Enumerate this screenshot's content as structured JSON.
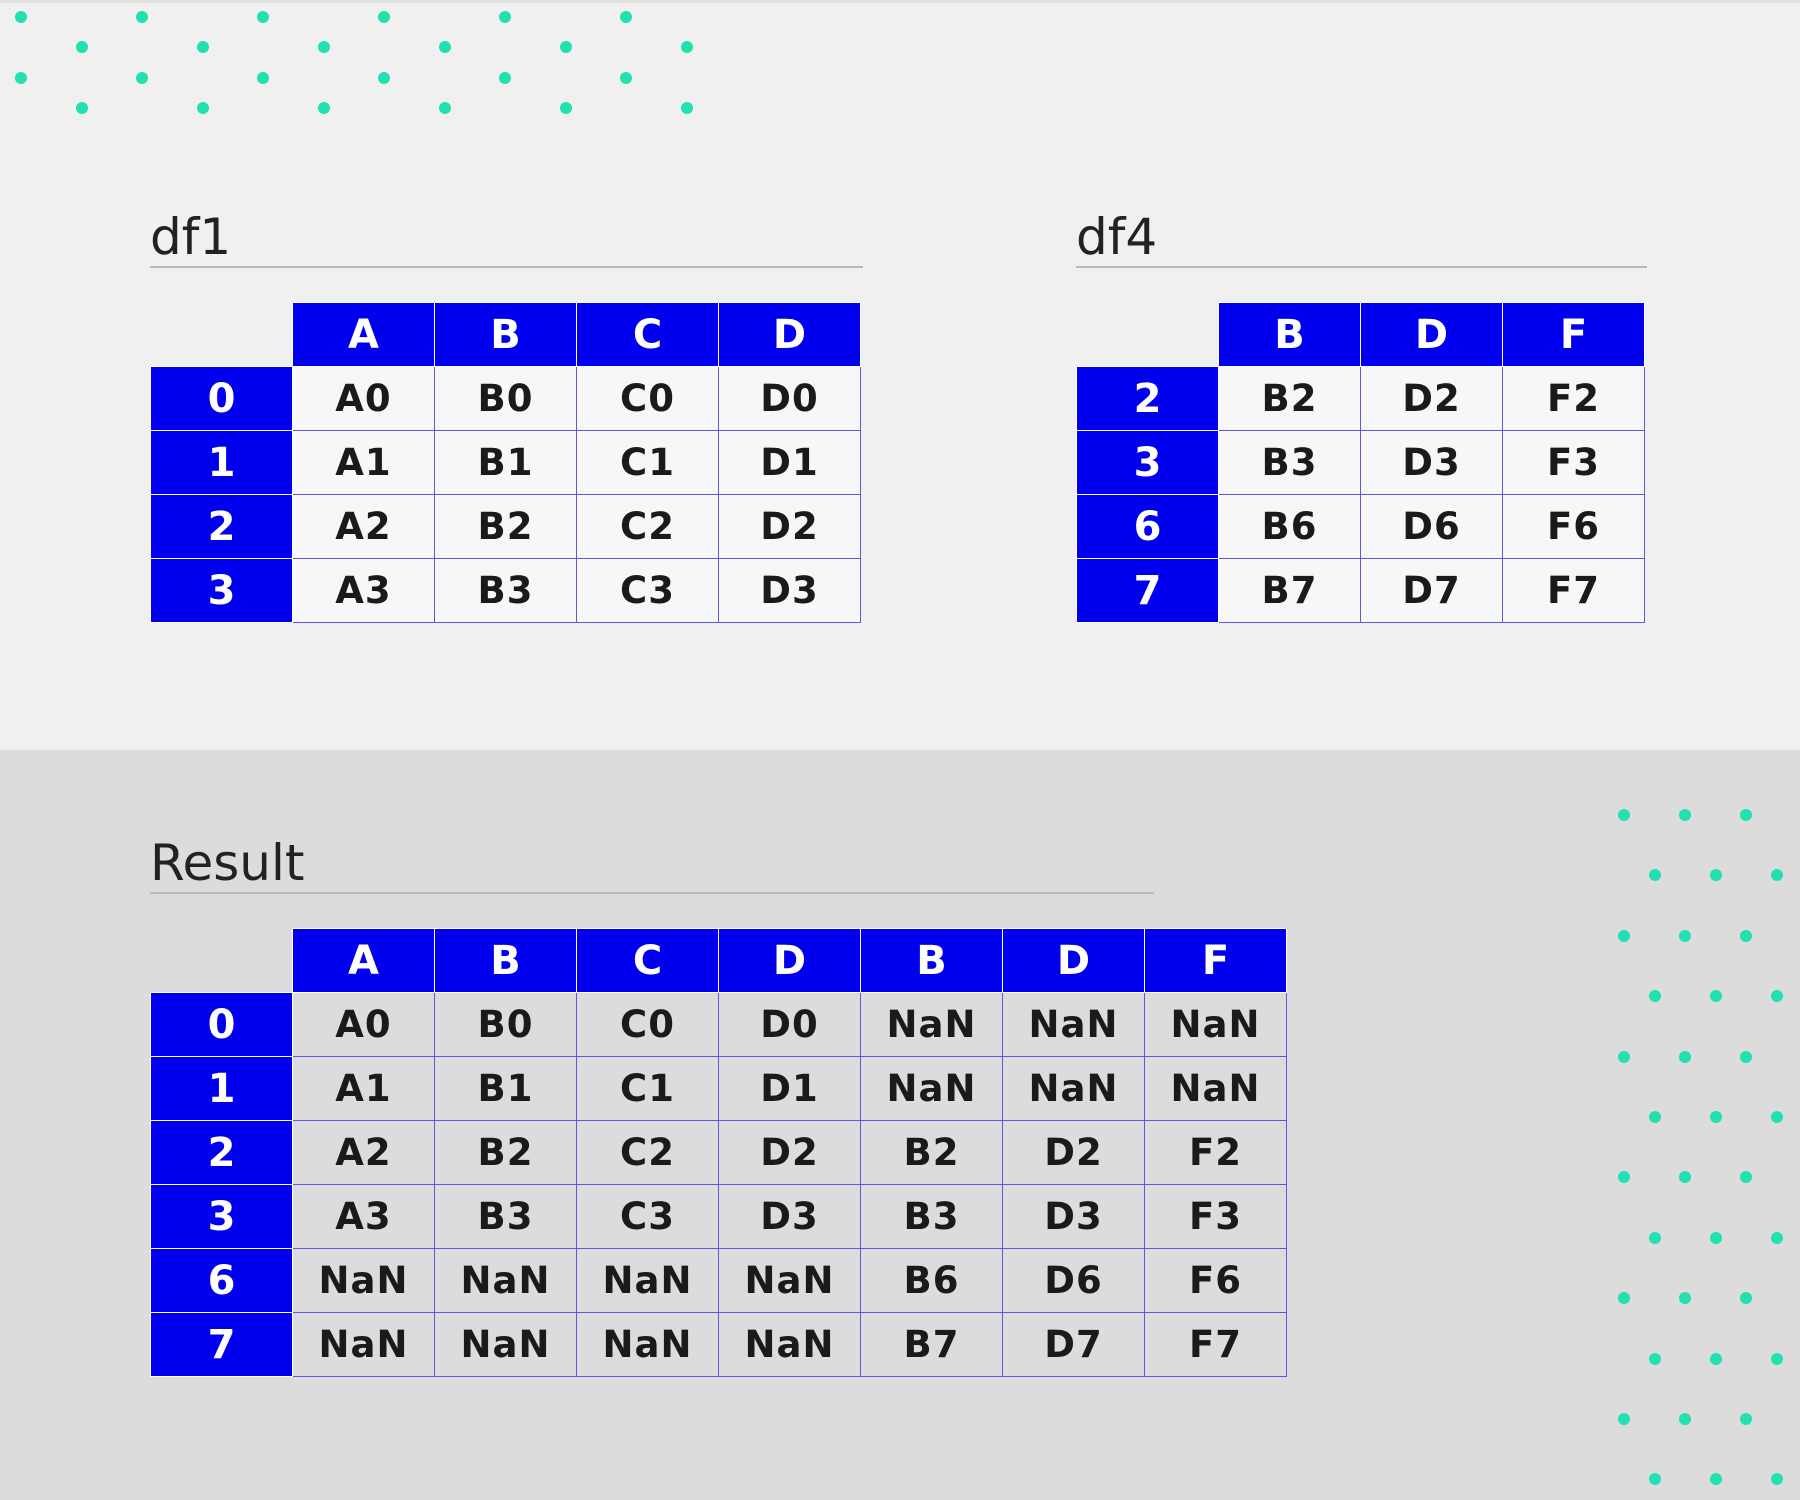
{
  "colors": {
    "header_bg": "#0000ee",
    "header_text": "#ffffff",
    "cell_border": "#5a5ae0",
    "dot": "#22e0b0",
    "top_bg": "#f0f0f0",
    "bottom_bg": "#dcdcdc"
  },
  "df1": {
    "title": "df1",
    "columns": [
      "A",
      "B",
      "C",
      "D"
    ],
    "rows": [
      {
        "index": "0",
        "cells": [
          "A0",
          "B0",
          "C0",
          "D0"
        ]
      },
      {
        "index": "1",
        "cells": [
          "A1",
          "B1",
          "C1",
          "D1"
        ]
      },
      {
        "index": "2",
        "cells": [
          "A2",
          "B2",
          "C2",
          "D2"
        ]
      },
      {
        "index": "3",
        "cells": [
          "A3",
          "B3",
          "C3",
          "D3"
        ]
      }
    ]
  },
  "df4": {
    "title": "df4",
    "columns": [
      "B",
      "D",
      "F"
    ],
    "rows": [
      {
        "index": "2",
        "cells": [
          "B2",
          "D2",
          "F2"
        ]
      },
      {
        "index": "3",
        "cells": [
          "B3",
          "D3",
          "F3"
        ]
      },
      {
        "index": "6",
        "cells": [
          "B6",
          "D6",
          "F6"
        ]
      },
      {
        "index": "7",
        "cells": [
          "B7",
          "D7",
          "F7"
        ]
      }
    ]
  },
  "result": {
    "title": "Result",
    "columns": [
      "A",
      "B",
      "C",
      "D",
      "B",
      "D",
      "F"
    ],
    "rows": [
      {
        "index": "0",
        "cells": [
          "A0",
          "B0",
          "C0",
          "D0",
          "NaN",
          "NaN",
          "NaN"
        ]
      },
      {
        "index": "1",
        "cells": [
          "A1",
          "B1",
          "C1",
          "D1",
          "NaN",
          "NaN",
          "NaN"
        ]
      },
      {
        "index": "2",
        "cells": [
          "A2",
          "B2",
          "C2",
          "D2",
          "B2",
          "D2",
          "F2"
        ]
      },
      {
        "index": "3",
        "cells": [
          "A3",
          "B3",
          "C3",
          "D3",
          "B3",
          "D3",
          "F3"
        ]
      },
      {
        "index": "6",
        "cells": [
          "NaN",
          "NaN",
          "NaN",
          "NaN",
          "B6",
          "D6",
          "F6"
        ]
      },
      {
        "index": "7",
        "cells": [
          "NaN",
          "NaN",
          "NaN",
          "NaN",
          "B7",
          "D7",
          "F7"
        ]
      }
    ]
  }
}
